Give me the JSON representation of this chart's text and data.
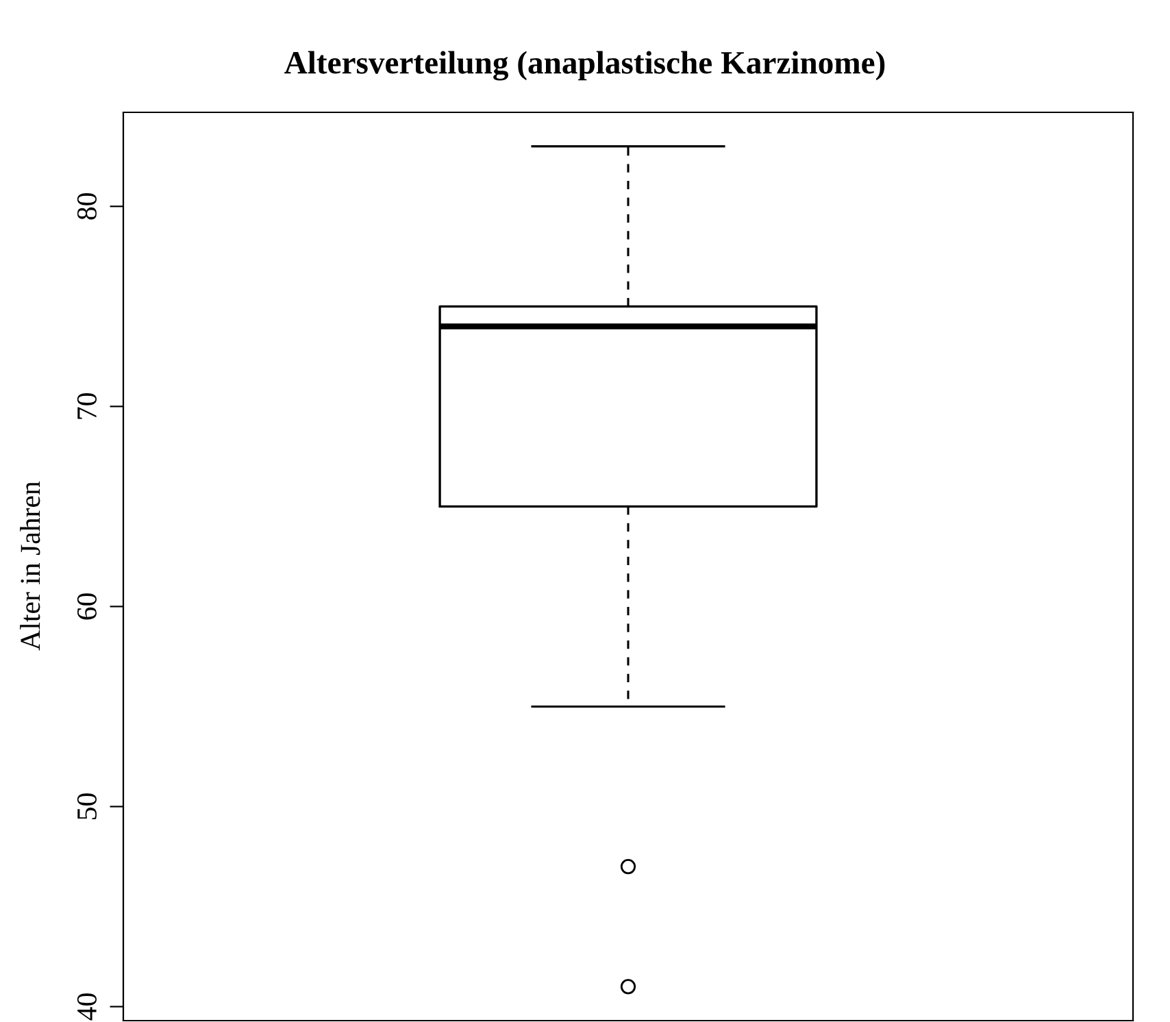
{
  "chart_data": {
    "type": "box",
    "title": "Altersverteilung (anaplastische Karzinome)",
    "ylabel": "Alter in Jahren",
    "categories": [
      null
    ],
    "boxes": [
      {
        "low": 55,
        "q1": 65,
        "median": 74,
        "q3": 75,
        "high": 83,
        "outliers": [
          47,
          41
        ]
      }
    ],
    "ylim": [
      39.3,
      84.7
    ],
    "yticks": [
      40,
      50,
      60,
      70,
      80
    ],
    "tick_labels": "y"
  }
}
